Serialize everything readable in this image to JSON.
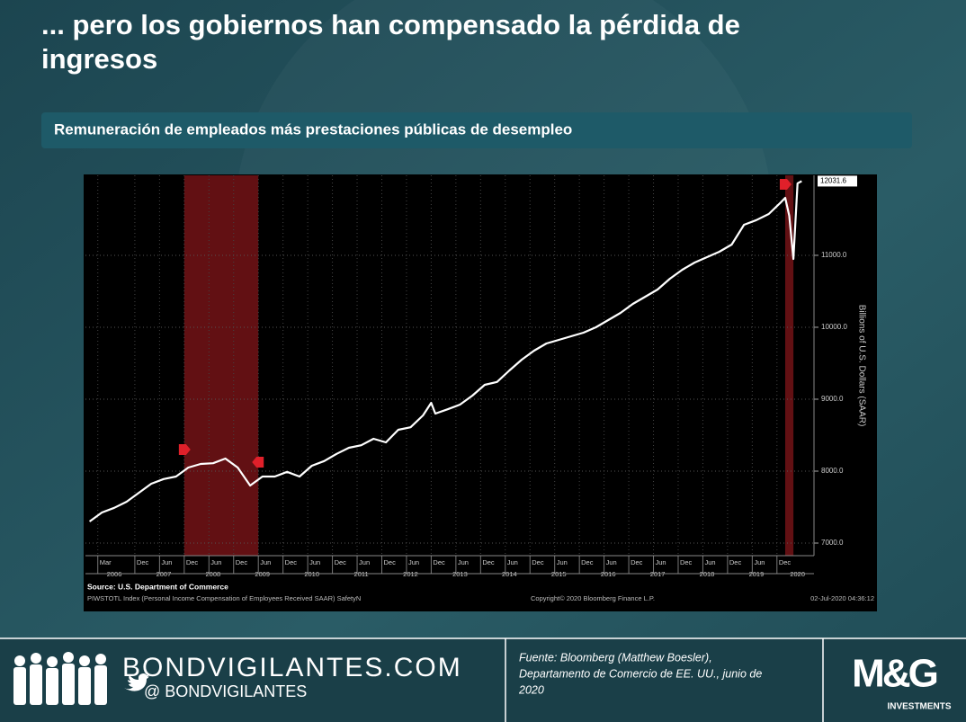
{
  "chart_data": {
    "type": "line",
    "title": "... pero los gobiernos han compensado la pérdida de ingresos",
    "subtitle": "Remuneración de empleados más prestaciones públicas de desempleo",
    "y_axis_label": "Billions of U.S. Dollars (SAAR)",
    "source": "Source: U.S. Department of Commerce",
    "index_note": "PIWSTOTL Index (Personal Income Compensation of Employees Received SAAR) SafetyN",
    "copyright": "Copyright© 2020 Bloomberg Finance L.P.",
    "timestamp": "02-Jul-2020 04:36:12",
    "x": [
      "2006-01",
      "2006-04",
      "2006-07",
      "2006-10",
      "2007-01",
      "2007-04",
      "2007-07",
      "2007-10",
      "2008-01",
      "2008-04",
      "2008-07",
      "2008-10",
      "2009-01",
      "2009-04",
      "2009-07",
      "2009-10",
      "2010-01",
      "2010-04",
      "2010-07",
      "2010-10",
      "2011-01",
      "2011-04",
      "2011-07",
      "2011-10",
      "2012-01",
      "2012-04",
      "2012-07",
      "2012-10",
      "2012-12",
      "2013-01",
      "2013-04",
      "2013-07",
      "2013-10",
      "2014-01",
      "2014-04",
      "2014-07",
      "2014-10",
      "2015-01",
      "2015-04",
      "2015-07",
      "2015-10",
      "2016-01",
      "2016-04",
      "2016-07",
      "2016-10",
      "2017-01",
      "2017-04",
      "2017-07",
      "2017-10",
      "2018-01",
      "2018-04",
      "2018-07",
      "2018-10",
      "2019-01",
      "2019-04",
      "2019-07",
      "2019-10",
      "2020-01",
      "2020-02",
      "2020-03",
      "2020-04",
      "2020-05",
      "2020-06"
    ],
    "series": [
      {
        "name": "PIWSTOTL Index",
        "color": "#ffffff",
        "values": [
          7300,
          7425,
          7490,
          7575,
          7700,
          7825,
          7890,
          7925,
          8050,
          8100,
          8110,
          8175,
          8050,
          7800,
          7925,
          7925,
          7990,
          7925,
          8075,
          8140,
          8240,
          8325,
          8360,
          8450,
          8400,
          8575,
          8610,
          8775,
          8950,
          8800,
          8860,
          8925,
          9050,
          9200,
          9240,
          9400,
          9550,
          9675,
          9775,
          9825,
          9875,
          9925,
          10000,
          10100,
          10200,
          10325,
          10425,
          10525,
          10675,
          10800,
          10900,
          10975,
          11050,
          11150,
          11425,
          11490,
          11575,
          11740,
          11800,
          11550,
          10950,
          12000,
          12031.6
        ]
      }
    ],
    "xlim": [
      "2005-12",
      "2020-09"
    ],
    "ylim": [
      6825,
      12112
    ],
    "yticks": [
      {
        "value": 7000,
        "label": "7000.0"
      },
      {
        "value": 8000,
        "label": "8000.0"
      },
      {
        "value": 9000,
        "label": "9000.0"
      },
      {
        "value": 10000,
        "label": "10000.0"
      },
      {
        "value": 11000,
        "label": "11000.0"
      }
    ],
    "xticks": [
      {
        "value": "2006-03",
        "label": "Mar"
      },
      {
        "value": "2006-12",
        "label": "Dec"
      },
      {
        "value": "2007-06",
        "label": "Jun"
      },
      {
        "value": "2007-12",
        "label": "Dec"
      },
      {
        "value": "2008-06",
        "label": "Jun"
      },
      {
        "value": "2008-12",
        "label": "Dec"
      },
      {
        "value": "2009-06",
        "label": "Jun"
      },
      {
        "value": "2009-12",
        "label": "Dec"
      },
      {
        "value": "2010-06",
        "label": "Jun"
      },
      {
        "value": "2010-12",
        "label": "Dec"
      },
      {
        "value": "2011-06",
        "label": "Jun"
      },
      {
        "value": "2011-12",
        "label": "Dec"
      },
      {
        "value": "2012-06",
        "label": "Jun"
      },
      {
        "value": "2012-12",
        "label": "Dec"
      },
      {
        "value": "2013-06",
        "label": "Jun"
      },
      {
        "value": "2013-12",
        "label": "Dec"
      },
      {
        "value": "2014-06",
        "label": "Jun"
      },
      {
        "value": "2014-12",
        "label": "Dec"
      },
      {
        "value": "2015-06",
        "label": "Jun"
      },
      {
        "value": "2015-12",
        "label": "Dec"
      },
      {
        "value": "2016-06",
        "label": "Jun"
      },
      {
        "value": "2016-12",
        "label": "Dec"
      },
      {
        "value": "2017-06",
        "label": "Jun"
      },
      {
        "value": "2017-12",
        "label": "Dec"
      },
      {
        "value": "2018-06",
        "label": "Jun"
      },
      {
        "value": "2018-12",
        "label": "Dec"
      },
      {
        "value": "2019-06",
        "label": "Jun"
      },
      {
        "value": "2019-12",
        "label": "Dec"
      }
    ],
    "xticks_years": [
      {
        "value": "2006-07",
        "label": "2006"
      },
      {
        "value": "2007-07",
        "label": "2007"
      },
      {
        "value": "2008-07",
        "label": "2008"
      },
      {
        "value": "2009-07",
        "label": "2009"
      },
      {
        "value": "2010-07",
        "label": "2010"
      },
      {
        "value": "2011-07",
        "label": "2011"
      },
      {
        "value": "2012-07",
        "label": "2012"
      },
      {
        "value": "2013-07",
        "label": "2013"
      },
      {
        "value": "2014-07",
        "label": "2014"
      },
      {
        "value": "2015-07",
        "label": "2015"
      },
      {
        "value": "2016-07",
        "label": "2016"
      },
      {
        "value": "2017-07",
        "label": "2017"
      },
      {
        "value": "2018-07",
        "label": "2018"
      },
      {
        "value": "2019-07",
        "label": "2019"
      },
      {
        "value": "2020-05",
        "label": "2020"
      }
    ],
    "shaded_periods": [
      {
        "start": "2007-12",
        "end": "2009-06"
      },
      {
        "start": "2020-02",
        "end": "2020-04"
      }
    ],
    "shade_color": "#7a1418",
    "grid": true
  },
  "footer": {
    "site": "BONDVIGILANTES.COM",
    "handle": "@ BONDVIGILANTES",
    "source_note": [
      "Fuente: Bloomberg (Matthew Boesler),",
      "Departamento de Comercio de EE. UU., junio de",
      "2020"
    ],
    "logo": "M&G",
    "logo_sub": "INVESTMENTS"
  }
}
